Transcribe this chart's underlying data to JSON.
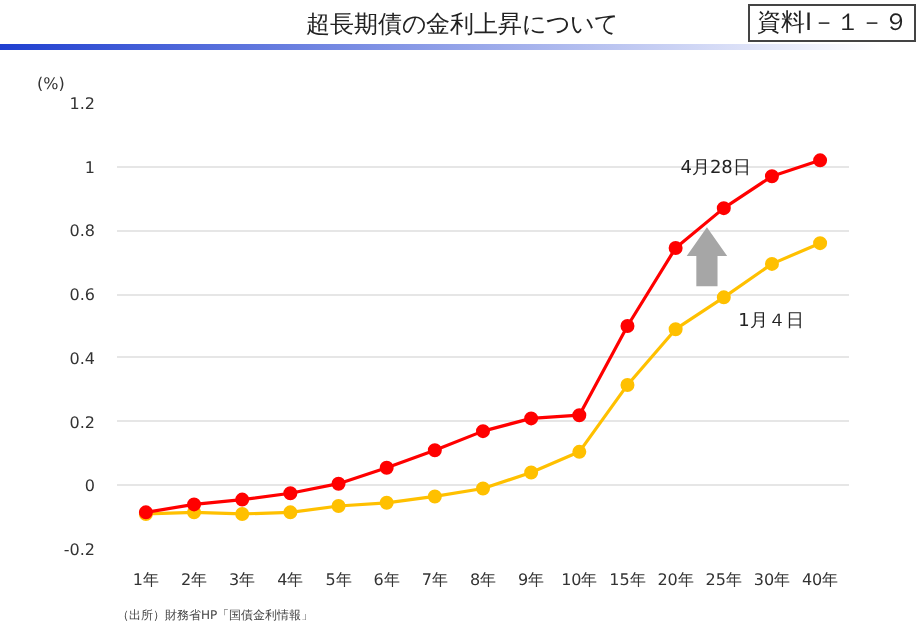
{
  "chart_data": {
    "type": "line",
    "title": "超長期債の金利上昇について",
    "ylabel": "(%)",
    "categories": [
      "1年",
      "2年",
      "3年",
      "4年",
      "5年",
      "6年",
      "7年",
      "8年",
      "9年",
      "10年",
      "15年",
      "20年",
      "25年",
      "30年",
      "40年"
    ],
    "series": [
      {
        "name": "4月28日",
        "color": "#ff0000",
        "values": [
          -0.085,
          -0.06,
          -0.045,
          -0.025,
          0.005,
          0.055,
          0.11,
          0.17,
          0.21,
          0.22,
          0.5,
          0.745,
          0.87,
          0.97,
          1.02
        ]
      },
      {
        "name": "1月４日",
        "color": "#ffc000",
        "values": [
          -0.09,
          -0.085,
          -0.09,
          -0.085,
          -0.065,
          -0.055,
          -0.035,
          -0.01,
          0.04,
          0.105,
          0.315,
          0.49,
          0.59,
          0.695,
          0.76
        ]
      }
    ],
    "ylim": [
      -0.2,
      1.2
    ],
    "yticks": [
      -0.2,
      0,
      0.2,
      0.4,
      0.6,
      0.8,
      1,
      1.2
    ],
    "grid": "y",
    "marker": "circle",
    "line_style": "solid",
    "legend": false,
    "annotations": [
      "資料Ⅰ－１－９",
      "（出所）財務省HP「国債金利情報」"
    ]
  }
}
